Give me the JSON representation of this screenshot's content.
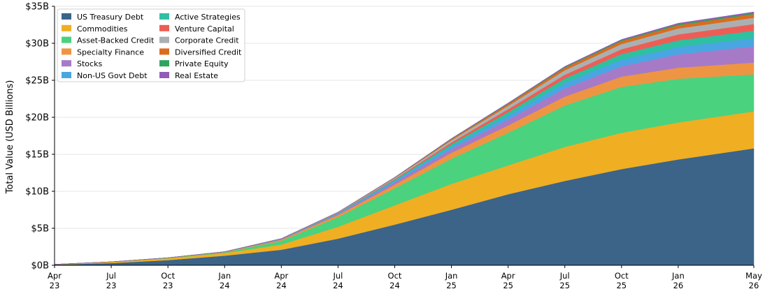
{
  "chart_data": {
    "type": "area",
    "stacked": true,
    "ylabel": "Total Value (USD Billions)",
    "ylim": [
      0,
      35
    ],
    "y_ticks": [
      0,
      5,
      10,
      15,
      20,
      25,
      30,
      35
    ],
    "y_tick_labels": [
      "$0B",
      "$5B",
      "$10B",
      "$15B",
      "$20B",
      "$25B",
      "$30B",
      "$35B"
    ],
    "x_ticks": [
      {
        "date": "2023-04",
        "month": "Apr",
        "year": "23"
      },
      {
        "date": "2023-07",
        "month": "Jul",
        "year": "23"
      },
      {
        "date": "2023-10",
        "month": "Oct",
        "year": "23"
      },
      {
        "date": "2024-01",
        "month": "Jan",
        "year": "24"
      },
      {
        "date": "2024-04",
        "month": "Apr",
        "year": "24"
      },
      {
        "date": "2024-07",
        "month": "Jul",
        "year": "24"
      },
      {
        "date": "2024-10",
        "month": "Oct",
        "year": "24"
      },
      {
        "date": "2025-01",
        "month": "Jan",
        "year": "25"
      },
      {
        "date": "2025-04",
        "month": "Apr",
        "year": "25"
      },
      {
        "date": "2025-07",
        "month": "Jul",
        "year": "25"
      },
      {
        "date": "2025-10",
        "month": "Oct",
        "year": "25"
      },
      {
        "date": "2026-01",
        "month": "Jan",
        "year": "26"
      },
      {
        "date": "2026-05",
        "month": "May",
        "year": "26"
      }
    ],
    "x": [
      "2023-04",
      "2023-07",
      "2023-10",
      "2024-01",
      "2024-04",
      "2024-07",
      "2024-10",
      "2025-01",
      "2025-04",
      "2025-07",
      "2025-10",
      "2026-01",
      "2026-05"
    ],
    "grid": "horizontal",
    "legend_placement": "top-left",
    "series": [
      {
        "name": "US Treasury Debt",
        "color": "#3b6488",
        "values": [
          0.1,
          0.3,
          0.7,
          1.3,
          2.1,
          3.6,
          5.5,
          7.5,
          9.6,
          11.4,
          13.0,
          14.3,
          15.8
        ]
      },
      {
        "name": "Commodities",
        "color": "#f0ae23",
        "values": [
          0.03,
          0.15,
          0.25,
          0.35,
          0.7,
          1.6,
          2.6,
          3.5,
          3.9,
          4.6,
          4.9,
          5.0,
          5.0
        ]
      },
      {
        "name": "Asset-Backed Credit",
        "color": "#4ad27e",
        "values": [
          0.0,
          0.02,
          0.05,
          0.1,
          0.5,
          1.3,
          2.3,
          3.4,
          4.4,
          5.6,
          6.2,
          5.9,
          5.0
        ]
      },
      {
        "name": "Specialty Finance",
        "color": "#ee9543",
        "values": [
          0.0,
          0.0,
          0.02,
          0.05,
          0.15,
          0.3,
          0.5,
          0.8,
          1.0,
          1.2,
          1.4,
          1.5,
          1.6
        ]
      },
      {
        "name": "Stocks",
        "color": "#a77ac7",
        "values": [
          0.0,
          0.0,
          0.0,
          0.02,
          0.05,
          0.1,
          0.3,
          0.5,
          0.8,
          1.1,
          1.4,
          1.8,
          2.2
        ]
      },
      {
        "name": "Non-US Govt Debt",
        "color": "#4aa6e2",
        "values": [
          0.0,
          0.0,
          0.0,
          0.02,
          0.05,
          0.1,
          0.2,
          0.35,
          0.55,
          0.75,
          0.9,
          1.0,
          1.1
        ]
      },
      {
        "name": "Active Strategies",
        "color": "#2fc0a2",
        "values": [
          0.0,
          0.0,
          0.0,
          0.0,
          0.02,
          0.05,
          0.15,
          0.3,
          0.45,
          0.6,
          0.75,
          0.9,
          1.0
        ]
      },
      {
        "name": "Venture Capital",
        "color": "#ec5e55",
        "values": [
          0.0,
          0.0,
          0.0,
          0.0,
          0.02,
          0.05,
          0.1,
          0.25,
          0.4,
          0.5,
          0.65,
          0.8,
          0.9
        ]
      },
      {
        "name": "Corporate Credit",
        "color": "#aab0b2",
        "values": [
          0.0,
          0.0,
          0.0,
          0.0,
          0.02,
          0.05,
          0.15,
          0.3,
          0.45,
          0.6,
          0.7,
          0.8,
          0.85
        ]
      },
      {
        "name": "Diversified Credit",
        "color": "#db6c1e",
        "values": [
          0.0,
          0.0,
          0.0,
          0.0,
          0.0,
          0.02,
          0.05,
          0.15,
          0.25,
          0.35,
          0.4,
          0.45,
          0.5
        ]
      },
      {
        "name": "Private Equity",
        "color": "#2fa45f",
        "values": [
          0.0,
          0.0,
          0.0,
          0.0,
          0.0,
          0.01,
          0.03,
          0.05,
          0.08,
          0.1,
          0.12,
          0.14,
          0.15
        ]
      },
      {
        "name": "Real Estate",
        "color": "#925bb8",
        "values": [
          0.0,
          0.0,
          0.0,
          0.0,
          0.0,
          0.01,
          0.02,
          0.04,
          0.06,
          0.08,
          0.1,
          0.12,
          0.14
        ]
      }
    ]
  }
}
